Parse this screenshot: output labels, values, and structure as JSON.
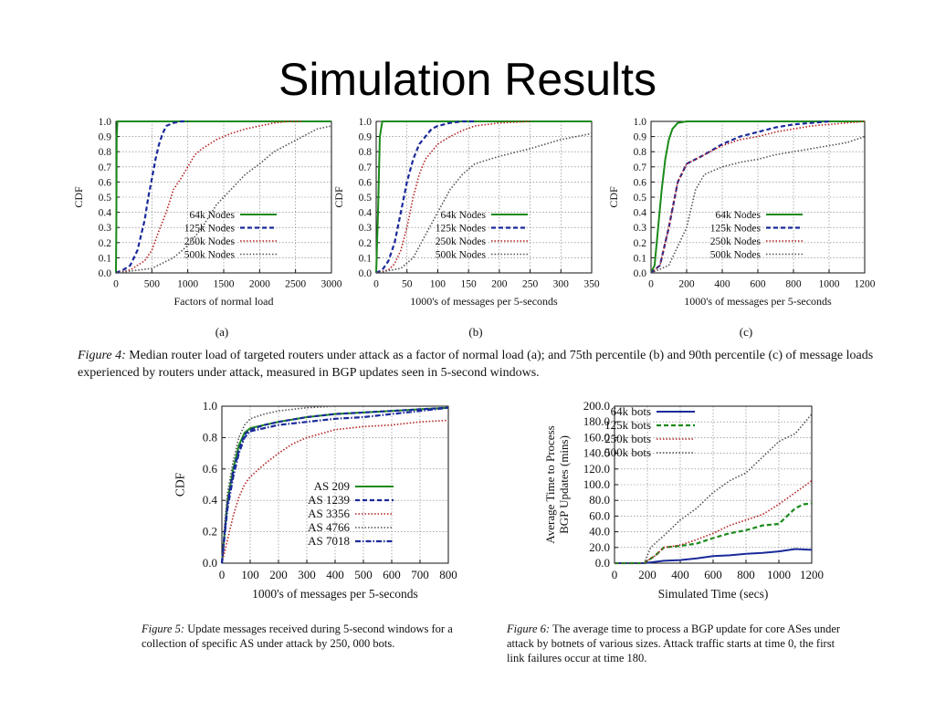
{
  "slide": {
    "title": "Simulation Results"
  },
  "figure4": {
    "caption_label": "Figure 4:",
    "caption_text": "Median router load of targeted routers under attack as a factor of normal load (a); and 75th percentile (b) and 90th percentile (c) of message loads experienced by routers under attack, measured in BGP updates seen in 5-second windows.",
    "sublabels": [
      "(a)",
      "(b)",
      "(c)"
    ]
  },
  "figure5": {
    "caption_label": "Figure 5:",
    "caption_text": "Update messages received during 5-second windows for a collection of specific AS under attack by 250, 000 bots."
  },
  "figure6": {
    "caption_label": "Figure 6:",
    "caption_text": "The average time to process a BGP update for core ASes under attack by botnets of various sizes. Attack traffic starts at time 0, the first link failures occur at time 180."
  },
  "chart_data": [
    {
      "id": "fig4a",
      "type": "line",
      "xlabel": "Factors of normal load",
      "ylabel": "CDF",
      "xlim": [
        0,
        3000
      ],
      "ylim": [
        0,
        1
      ],
      "xticks": [
        0,
        500,
        1000,
        1500,
        2000,
        2500,
        3000
      ],
      "yticks": [
        0.0,
        0.1,
        0.2,
        0.3,
        0.4,
        0.5,
        0.6,
        0.7,
        0.8,
        0.9,
        1.0
      ],
      "ytick_labels": [
        "0.0",
        "0.1",
        "0.2",
        "0.3",
        "0.4",
        "0.5",
        "0.6",
        "0.7",
        "0.8",
        "0.9",
        "1.0"
      ],
      "grid": true,
      "legend_position": "bottom-right",
      "series": [
        {
          "name": "64k Nodes",
          "color": "#1a8a1a",
          "dash": "solid",
          "x": [
            0,
            5,
            10,
            20,
            3000
          ],
          "y": [
            0,
            0.3,
            0.9,
            1.0,
            1.0
          ]
        },
        {
          "name": "125k Nodes",
          "color": "#1a2a9a",
          "dash": "dashed",
          "x": [
            0,
            100,
            200,
            300,
            350,
            400,
            450,
            500,
            550,
            600,
            650,
            700,
            800,
            900,
            1000
          ],
          "y": [
            0,
            0.02,
            0.05,
            0.15,
            0.25,
            0.35,
            0.5,
            0.62,
            0.75,
            0.85,
            0.92,
            0.97,
            0.99,
            1.0,
            1.0
          ]
        },
        {
          "name": "250k Nodes",
          "color": "#b52020",
          "dash": "dotted",
          "x": [
            0,
            200,
            400,
            500,
            600,
            700,
            800,
            900,
            1000,
            1100,
            1200,
            1400,
            1600,
            1800,
            2000,
            2200,
            2400,
            2600
          ],
          "y": [
            0,
            0.02,
            0.08,
            0.15,
            0.28,
            0.4,
            0.55,
            0.62,
            0.7,
            0.78,
            0.82,
            0.88,
            0.92,
            0.95,
            0.97,
            0.99,
            1.0,
            1.0
          ]
        },
        {
          "name": "500k Nodes",
          "color": "#555555",
          "dash": "dotted",
          "x": [
            0,
            500,
            800,
            1000,
            1200,
            1400,
            1600,
            1800,
            2000,
            2200,
            2400,
            2600,
            2800,
            3000
          ],
          "y": [
            0,
            0.03,
            0.1,
            0.18,
            0.3,
            0.45,
            0.55,
            0.65,
            0.72,
            0.8,
            0.85,
            0.9,
            0.95,
            0.97
          ]
        }
      ]
    },
    {
      "id": "fig4b",
      "type": "line",
      "xlabel": "1000's of messages per 5-seconds",
      "ylabel": "CDF",
      "xlim": [
        0,
        350
      ],
      "ylim": [
        0,
        1
      ],
      "xticks": [
        0,
        50,
        100,
        150,
        200,
        250,
        300,
        350
      ],
      "yticks": [
        0.0,
        0.1,
        0.2,
        0.3,
        0.4,
        0.5,
        0.6,
        0.7,
        0.8,
        0.9,
        1.0
      ],
      "ytick_labels": [
        "0.0",
        "0.1",
        "0.2",
        "0.3",
        "0.4",
        "0.5",
        "0.6",
        "0.7",
        "0.8",
        "0.9",
        "1.0"
      ],
      "grid": true,
      "legend_position": "bottom-right",
      "series": [
        {
          "name": "64k Nodes",
          "color": "#1a8a1a",
          "dash": "solid",
          "x": [
            0,
            3,
            6,
            10,
            350
          ],
          "y": [
            0,
            0.4,
            0.9,
            1.0,
            1.0
          ]
        },
        {
          "name": "125k Nodes",
          "color": "#1a2a9a",
          "dash": "dashed",
          "x": [
            0,
            10,
            20,
            30,
            40,
            50,
            60,
            70,
            80,
            90,
            100,
            120,
            140,
            160
          ],
          "y": [
            0,
            0.02,
            0.08,
            0.2,
            0.4,
            0.6,
            0.75,
            0.85,
            0.9,
            0.95,
            0.97,
            0.99,
            1.0,
            1.0
          ]
        },
        {
          "name": "250k Nodes",
          "color": "#b52020",
          "dash": "dotted",
          "x": [
            0,
            20,
            30,
            40,
            50,
            60,
            70,
            80,
            100,
            120,
            140,
            160,
            200,
            250
          ],
          "y": [
            0,
            0.02,
            0.06,
            0.15,
            0.3,
            0.5,
            0.65,
            0.75,
            0.85,
            0.9,
            0.94,
            0.97,
            0.99,
            1.0
          ]
        },
        {
          "name": "500k Nodes",
          "color": "#555555",
          "dash": "dotted",
          "x": [
            0,
            40,
            60,
            80,
            100,
            120,
            140,
            160,
            200,
            250,
            300,
            350
          ],
          "y": [
            0,
            0.03,
            0.1,
            0.25,
            0.4,
            0.55,
            0.65,
            0.72,
            0.77,
            0.82,
            0.88,
            0.92
          ]
        }
      ]
    },
    {
      "id": "fig4c",
      "type": "line",
      "xlabel": "1000's of messages per 5-seconds",
      "ylabel": "CDF",
      "xlim": [
        0,
        1200
      ],
      "ylim": [
        0,
        1
      ],
      "xticks": [
        0,
        200,
        400,
        600,
        800,
        1000,
        1200
      ],
      "yticks": [
        0.0,
        0.1,
        0.2,
        0.3,
        0.4,
        0.5,
        0.6,
        0.7,
        0.8,
        0.9,
        1.0
      ],
      "ytick_labels": [
        "0.0",
        "0.1",
        "0.2",
        "0.3",
        "0.4",
        "0.5",
        "0.6",
        "0.7",
        "0.8",
        "0.9",
        "1.0"
      ],
      "grid": true,
      "legend_position": "bottom-right",
      "series": [
        {
          "name": "64k Nodes",
          "color": "#1a8a1a",
          "dash": "solid",
          "x": [
            0,
            20,
            40,
            60,
            80,
            100,
            120,
            150,
            200,
            1200
          ],
          "y": [
            0,
            0.05,
            0.3,
            0.55,
            0.75,
            0.88,
            0.95,
            0.99,
            1.0,
            1.0
          ]
        },
        {
          "name": "125k Nodes",
          "color": "#1a2a9a",
          "dash": "dashed",
          "x": [
            0,
            50,
            100,
            150,
            200,
            300,
            400,
            500,
            600,
            700,
            800,
            900,
            1000
          ],
          "y": [
            0,
            0.05,
            0.3,
            0.6,
            0.72,
            0.78,
            0.85,
            0.9,
            0.93,
            0.96,
            0.98,
            0.99,
            1.0
          ]
        },
        {
          "name": "250k Nodes",
          "color": "#b52020",
          "dash": "dotted",
          "x": [
            0,
            50,
            100,
            150,
            200,
            300,
            400,
            500,
            600,
            700,
            800,
            900,
            1000,
            1100,
            1200
          ],
          "y": [
            0,
            0.05,
            0.3,
            0.6,
            0.72,
            0.78,
            0.84,
            0.88,
            0.9,
            0.93,
            0.95,
            0.97,
            0.98,
            0.99,
            1.0
          ]
        },
        {
          "name": "500k Nodes",
          "color": "#555555",
          "dash": "dotted",
          "x": [
            0,
            100,
            200,
            250,
            300,
            400,
            500,
            600,
            700,
            800,
            900,
            1000,
            1100,
            1200
          ],
          "y": [
            0,
            0.05,
            0.3,
            0.55,
            0.65,
            0.7,
            0.73,
            0.75,
            0.78,
            0.8,
            0.82,
            0.84,
            0.86,
            0.9
          ]
        }
      ]
    },
    {
      "id": "fig5",
      "type": "line",
      "xlabel": "1000's of messages per 5-seconds",
      "ylabel": "CDF",
      "xlim": [
        0,
        800
      ],
      "ylim": [
        0,
        1
      ],
      "xticks": [
        0,
        100,
        200,
        300,
        400,
        500,
        600,
        700,
        800
      ],
      "yticks": [
        0.0,
        0.2,
        0.4,
        0.6,
        0.8,
        1.0
      ],
      "ytick_labels": [
        "0.0",
        "0.2",
        "0.4",
        "0.6",
        "0.8",
        "1.0"
      ],
      "grid": true,
      "legend_position": "bottom-right",
      "series": [
        {
          "name": "AS 209",
          "color": "#1a8a1a",
          "dash": "solid",
          "x": [
            0,
            10,
            20,
            40,
            60,
            80,
            100,
            150,
            200,
            300,
            400,
            500,
            600,
            700,
            800
          ],
          "y": [
            0,
            0.2,
            0.4,
            0.6,
            0.75,
            0.83,
            0.86,
            0.88,
            0.9,
            0.93,
            0.95,
            0.96,
            0.97,
            0.98,
            0.99
          ]
        },
        {
          "name": "AS 1239",
          "color": "#1a2a9a",
          "dash": "dashed",
          "x": [
            0,
            10,
            20,
            40,
            60,
            80,
            100,
            150,
            200,
            300,
            400,
            500,
            600,
            700,
            800
          ],
          "y": [
            0,
            0.2,
            0.38,
            0.58,
            0.72,
            0.82,
            0.85,
            0.88,
            0.9,
            0.93,
            0.95,
            0.96,
            0.97,
            0.98,
            0.99
          ]
        },
        {
          "name": "AS 3356",
          "color": "#b52020",
          "dash": "dotted",
          "x": [
            0,
            20,
            40,
            60,
            80,
            100,
            150,
            200,
            250,
            300,
            400,
            500,
            600,
            700,
            800
          ],
          "y": [
            0,
            0.15,
            0.3,
            0.42,
            0.5,
            0.55,
            0.63,
            0.7,
            0.76,
            0.8,
            0.85,
            0.87,
            0.88,
            0.9,
            0.91
          ]
        },
        {
          "name": "AS 4766",
          "color": "#555555",
          "dash": "dotted",
          "x": [
            0,
            10,
            20,
            40,
            60,
            80,
            100,
            150,
            200,
            300,
            400,
            500,
            800
          ],
          "y": [
            0,
            0.25,
            0.45,
            0.65,
            0.8,
            0.88,
            0.92,
            0.95,
            0.97,
            0.99,
            1.0,
            1.0,
            1.0
          ]
        },
        {
          "name": "AS 7018",
          "color": "#1a2a9a",
          "dash": "dashdot",
          "x": [
            0,
            10,
            20,
            40,
            60,
            80,
            100,
            150,
            200,
            300,
            400,
            500,
            600,
            700,
            800
          ],
          "y": [
            0,
            0.18,
            0.35,
            0.55,
            0.7,
            0.8,
            0.84,
            0.86,
            0.88,
            0.9,
            0.92,
            0.93,
            0.95,
            0.97,
            0.99
          ]
        }
      ]
    },
    {
      "id": "fig6",
      "type": "line",
      "xlabel": "Simulated Time (secs)",
      "ylabel_lines": [
        "Average Time to Process",
        "BGP Updates (mins)"
      ],
      "xlim": [
        0,
        1200
      ],
      "ylim": [
        0,
        200
      ],
      "xticks": [
        0,
        200,
        400,
        600,
        800,
        1000,
        1200
      ],
      "yticks": [
        0,
        20,
        40,
        60,
        80,
        100,
        120,
        140,
        160,
        180,
        200
      ],
      "ytick_labels": [
        "0.0",
        "20.0",
        "40.0",
        "60.0",
        "80.0",
        "100.0",
        "120.0",
        "140.0",
        "160.0",
        "180.0",
        "200.0"
      ],
      "grid": true,
      "legend_position": "top-left",
      "series": [
        {
          "name": "64k bots",
          "color": "#1a2a9a",
          "dash": "solid",
          "x": [
            0,
            180,
            300,
            400,
            500,
            600,
            700,
            800,
            900,
            1000,
            1100,
            1200
          ],
          "y": [
            0,
            0,
            3,
            4,
            6,
            9,
            10,
            12,
            13,
            15,
            18,
            17
          ]
        },
        {
          "name": "125k bots",
          "color": "#1a8a1a",
          "dash": "dashed",
          "x": [
            0,
            180,
            250,
            300,
            400,
            500,
            600,
            700,
            800,
            900,
            1000,
            1050,
            1100,
            1150,
            1200
          ],
          "y": [
            0,
            0,
            10,
            20,
            22,
            25,
            32,
            38,
            42,
            48,
            50,
            60,
            70,
            75,
            76
          ]
        },
        {
          "name": "250k bots",
          "color": "#b52020",
          "dash": "dotted",
          "x": [
            0,
            180,
            250,
            300,
            400,
            500,
            600,
            700,
            800,
            900,
            1000,
            1100,
            1200
          ],
          "y": [
            0,
            0,
            10,
            20,
            23,
            30,
            38,
            48,
            55,
            62,
            75,
            90,
            105
          ]
        },
        {
          "name": "500k bots",
          "color": "#555555",
          "dash": "dotted",
          "x": [
            0,
            180,
            220,
            300,
            400,
            500,
            600,
            700,
            800,
            900,
            1000,
            1100,
            1200
          ],
          "y": [
            0,
            0,
            20,
            35,
            55,
            70,
            90,
            105,
            115,
            135,
            155,
            165,
            190
          ]
        }
      ]
    }
  ]
}
